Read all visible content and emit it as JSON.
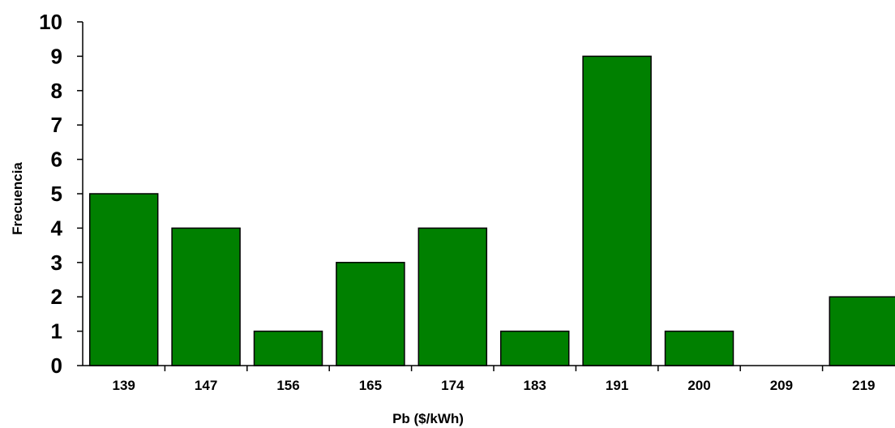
{
  "chart_data": {
    "type": "bar",
    "categories": [
      "139",
      "147",
      "156",
      "165",
      "174",
      "183",
      "191",
      "200",
      "209",
      "219"
    ],
    "values": [
      5,
      4,
      1,
      3,
      4,
      1,
      9,
      1,
      0,
      2
    ],
    "title": "",
    "xlabel": "Pb ($/kWh)",
    "ylabel": "Frecuencia",
    "ylim": [
      0,
      10
    ],
    "yticks": [
      "0",
      "1",
      "2",
      "3",
      "4",
      "5",
      "6",
      "7",
      "8",
      "9",
      "10"
    ],
    "grid": false,
    "legend": "none",
    "bar_color": "#008000",
    "bar_edge_color": "#000000"
  }
}
